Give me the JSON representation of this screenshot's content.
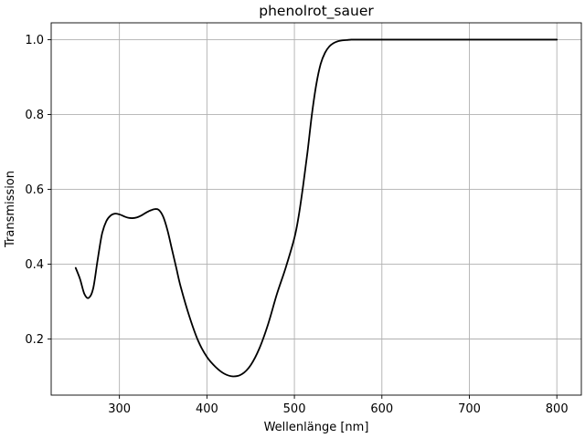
{
  "chart_data": {
    "type": "line",
    "title": "phenolrot_sauer",
    "xlabel": "Wellenlänge [nm]",
    "ylabel": "Transmission",
    "xlim": [
      222,
      828
    ],
    "ylim": [
      0.05,
      1.045
    ],
    "xticks": [
      300,
      400,
      500,
      600,
      700,
      800
    ],
    "xtick_labels": [
      "300",
      "400",
      "500",
      "600",
      "700",
      "800"
    ],
    "yticks": [
      0.2,
      0.4,
      0.6,
      0.8,
      1.0
    ],
    "ytick_labels": [
      "0.2",
      "0.4",
      "0.6",
      "0.8",
      "1.0"
    ],
    "grid": true,
    "line_color": "#000000",
    "series": [
      {
        "x": [
          250,
          255,
          260,
          265,
          270,
          275,
          280,
          285,
          290,
          295,
          300,
          305,
          310,
          315,
          320,
          325,
          330,
          335,
          340,
          345,
          350,
          355,
          360,
          365,
          370,
          380,
          390,
          400,
          410,
          420,
          430,
          440,
          450,
          460,
          470,
          480,
          490,
          500,
          505,
          510,
          515,
          520,
          525,
          530,
          535,
          540,
          545,
          550,
          555,
          560,
          565,
          570,
          575,
          580,
          600,
          650,
          700,
          750,
          800
        ],
        "y": [
          0.39,
          0.36,
          0.32,
          0.31,
          0.335,
          0.41,
          0.48,
          0.515,
          0.53,
          0.535,
          0.533,
          0.528,
          0.524,
          0.523,
          0.525,
          0.53,
          0.537,
          0.543,
          0.547,
          0.545,
          0.527,
          0.49,
          0.44,
          0.39,
          0.34,
          0.26,
          0.195,
          0.152,
          0.125,
          0.107,
          0.1,
          0.106,
          0.13,
          0.175,
          0.24,
          0.32,
          0.39,
          0.47,
          0.53,
          0.61,
          0.7,
          0.8,
          0.88,
          0.935,
          0.965,
          0.982,
          0.991,
          0.996,
          0.998,
          0.999,
          1.0,
          1.0,
          1.0,
          1.0,
          1.0,
          1.0,
          1.0,
          1.0,
          1.0
        ]
      }
    ]
  }
}
